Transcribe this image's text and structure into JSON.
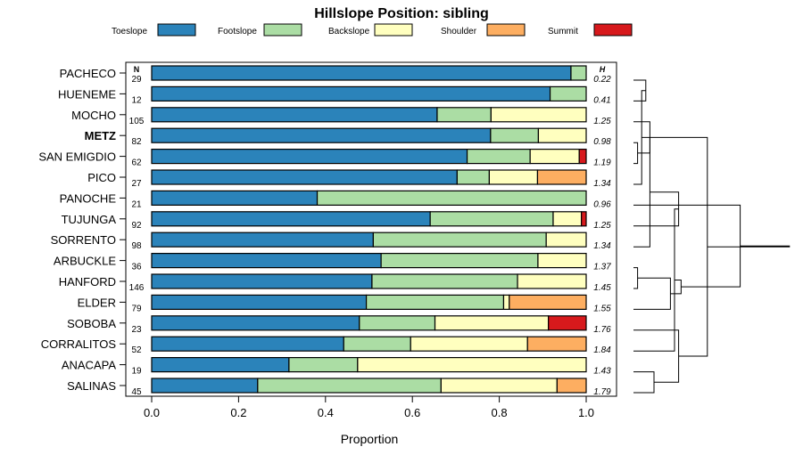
{
  "chart_data": {
    "type": "bar",
    "stacked": true,
    "orientation": "horizontal",
    "title": "Hillslope Position: sibling",
    "xlabel": "Proportion",
    "xlim": [
      0,
      1
    ],
    "xticks": [
      "0.0",
      "0.2",
      "0.4",
      "0.6",
      "0.8",
      "1.0"
    ],
    "n_header": "N",
    "h_header": "H",
    "legend": [
      {
        "name": "Toeslope",
        "color": "#2b83ba"
      },
      {
        "name": "Footslope",
        "color": "#abdda4"
      },
      {
        "name": "Backslope",
        "color": "#ffffbf"
      },
      {
        "name": "Shoulder",
        "color": "#fdae61"
      },
      {
        "name": "Summit",
        "color": "#d7191c"
      }
    ],
    "rows": [
      {
        "label": "PACHECO",
        "n": "29",
        "h": "0.22",
        "bold": false,
        "values": [
          0.965,
          0.035,
          0,
          0,
          0
        ]
      },
      {
        "label": "HUENEME",
        "n": "12",
        "h": "0.41",
        "bold": false,
        "values": [
          0.917,
          0.083,
          0,
          0,
          0
        ]
      },
      {
        "label": "MOCHO",
        "n": "105",
        "h": "1.25",
        "bold": false,
        "values": [
          0.657,
          0.124,
          0.219,
          0,
          0
        ]
      },
      {
        "label": "METZ",
        "n": "82",
        "h": "0.98",
        "bold": true,
        "values": [
          0.78,
          0.11,
          0.11,
          0,
          0
        ]
      },
      {
        "label": "SAN EMIGDIO",
        "n": "62",
        "h": "1.19",
        "bold": false,
        "values": [
          0.726,
          0.145,
          0.113,
          0,
          0.016
        ]
      },
      {
        "label": "PICO",
        "n": "27",
        "h": "1.34",
        "bold": false,
        "values": [
          0.703,
          0.074,
          0.111,
          0.112,
          0
        ]
      },
      {
        "label": "PANOCHE",
        "n": "21",
        "h": "0.96",
        "bold": false,
        "values": [
          0.381,
          0.619,
          0,
          0,
          0
        ]
      },
      {
        "label": "TUJUNGA",
        "n": "92",
        "h": "1.25",
        "bold": false,
        "values": [
          0.641,
          0.283,
          0.065,
          0,
          0.011
        ]
      },
      {
        "label": "SORRENTO",
        "n": "98",
        "h": "1.34",
        "bold": false,
        "values": [
          0.51,
          0.398,
          0.092,
          0,
          0
        ]
      },
      {
        "label": "ARBUCKLE",
        "n": "36",
        "h": "1.37",
        "bold": false,
        "values": [
          0.528,
          0.361,
          0.111,
          0,
          0
        ]
      },
      {
        "label": "HANFORD",
        "n": "146",
        "h": "1.45",
        "bold": false,
        "values": [
          0.507,
          0.335,
          0.158,
          0,
          0
        ]
      },
      {
        "label": "ELDER",
        "n": "79",
        "h": "1.55",
        "bold": false,
        "values": [
          0.494,
          0.316,
          0.013,
          0.177,
          0
        ]
      },
      {
        "label": "SOBOBA",
        "n": "23",
        "h": "1.76",
        "bold": false,
        "values": [
          0.478,
          0.174,
          0.261,
          0,
          0.087
        ]
      },
      {
        "label": "CORRALITOS",
        "n": "52",
        "h": "1.84",
        "bold": false,
        "values": [
          0.442,
          0.154,
          0.269,
          0.135,
          0
        ]
      },
      {
        "label": "ANACAPA",
        "n": "19",
        "h": "1.43",
        "bold": false,
        "values": [
          0.316,
          0.158,
          0.526,
          0,
          0
        ]
      },
      {
        "label": "SALINAS",
        "n": "45",
        "h": "1.79",
        "bold": false,
        "values": [
          0.244,
          0.422,
          0.267,
          0.067,
          0
        ]
      }
    ],
    "dendrogram_merges": [
      [
        0,
        1,
        0.15
      ],
      [
        3,
        4,
        0.05
      ],
      [
        5,
        16,
        0.1
      ],
      [
        2,
        17,
        0.2
      ],
      [
        9,
        10,
        0.05
      ],
      [
        8,
        19,
        0.2
      ],
      [
        11,
        20,
        0.45
      ],
      [
        7,
        21,
        0.55
      ],
      [
        14,
        15,
        0.25
      ],
      [
        13,
        23,
        0.5
      ],
      [
        12,
        24,
        0.55
      ],
      [
        22,
        25,
        0.58
      ],
      [
        18,
        26,
        0.9
      ],
      [
        6,
        27,
        1.3
      ],
      [
        28,
        29,
        1.9
      ]
    ]
  }
}
